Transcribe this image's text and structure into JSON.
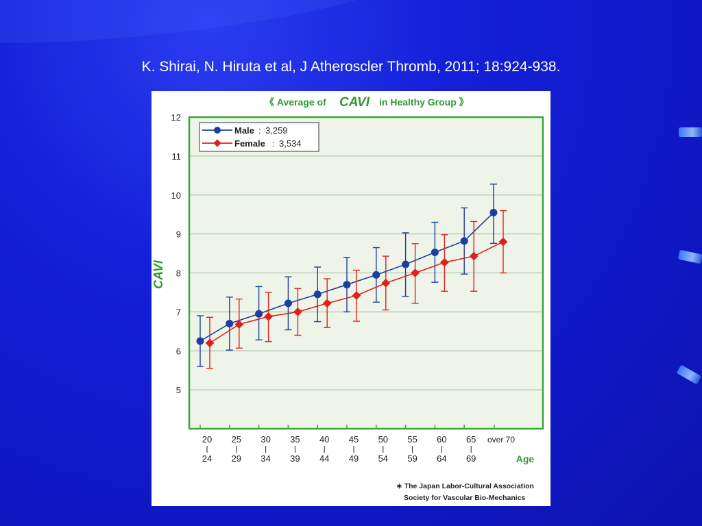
{
  "citation": "K. Shirai,  N. Hiruta et al, J Atheroscler Thromb, 2011; 18:924-938.",
  "chart_data": {
    "type": "line",
    "title_parts": [
      "《 Average of",
      "CAVI",
      "in Healthy Group 》"
    ],
    "ylabel": "CAVI",
    "xlabel": "Age",
    "ylim": [
      4,
      12
    ],
    "yticks": [
      5,
      6,
      7,
      8,
      9,
      10,
      11,
      12
    ],
    "categories": [
      {
        "top": "20",
        "bottom": "24"
      },
      {
        "top": "25",
        "bottom": "29"
      },
      {
        "top": "30",
        "bottom": "34"
      },
      {
        "top": "35",
        "bottom": "39"
      },
      {
        "top": "40",
        "bottom": "44"
      },
      {
        "top": "45",
        "bottom": "49"
      },
      {
        "top": "50",
        "bottom": "54"
      },
      {
        "top": "55",
        "bottom": "59"
      },
      {
        "top": "60",
        "bottom": "64"
      },
      {
        "top": "65",
        "bottom": "69"
      },
      {
        "top": "over 70",
        "bottom": ""
      }
    ],
    "series": [
      {
        "name": "Male",
        "count": "3,259",
        "color": "#1c3f9e",
        "marker": "circle",
        "values": [
          6.25,
          6.7,
          6.95,
          7.22,
          7.45,
          7.7,
          7.95,
          8.22,
          8.53,
          8.82,
          9.55
        ],
        "sd_upper": [
          6.9,
          7.38,
          7.65,
          7.9,
          8.15,
          8.4,
          8.65,
          9.03,
          9.3,
          9.67,
          10.28
        ],
        "sd_lower": [
          5.6,
          6.02,
          6.28,
          6.54,
          6.75,
          7.0,
          7.25,
          7.4,
          7.76,
          7.97,
          8.76
        ]
      },
      {
        "name": "Female",
        "count": "3,534",
        "color": "#e0201c",
        "marker": "diamond",
        "values": [
          6.2,
          6.68,
          6.88,
          7.0,
          7.22,
          7.42,
          7.74,
          8.0,
          8.27,
          8.43,
          8.8
        ],
        "sd_upper": [
          6.86,
          7.33,
          7.5,
          7.6,
          7.85,
          8.07,
          8.43,
          8.75,
          8.98,
          9.32,
          9.6
        ],
        "sd_lower": [
          5.55,
          6.07,
          6.24,
          6.4,
          6.6,
          6.76,
          7.05,
          7.22,
          7.53,
          7.53,
          8.0
        ]
      }
    ],
    "legend_position": "top-left",
    "grid": true,
    "footnote": [
      "∗ The Japan Labor-Cultural Association",
      "Society for Vascular Bio-Mechanics"
    ],
    "colors": {
      "plot_background": "#eef4e8",
      "frame": "#3aa83a",
      "gridline": "#9fb79f",
      "accent_green": "#2f9a2f"
    }
  }
}
